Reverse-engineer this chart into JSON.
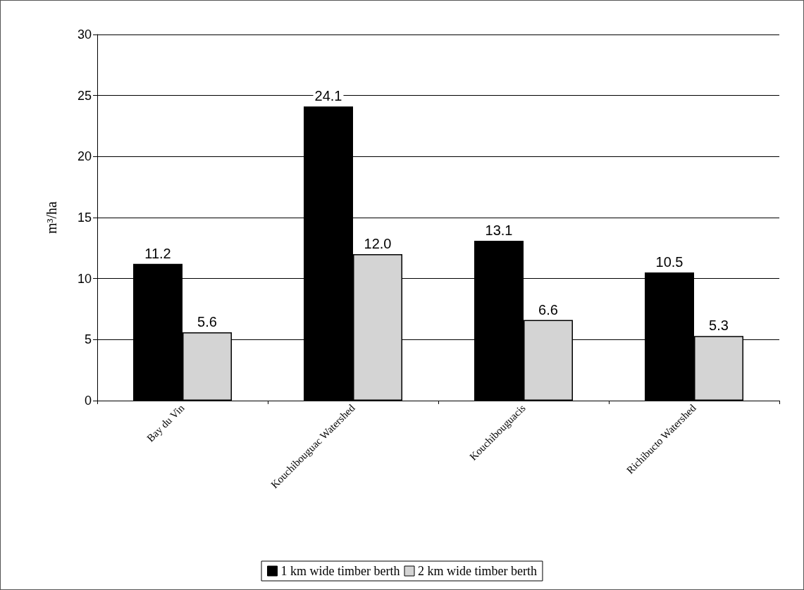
{
  "chart_data": {
    "type": "bar",
    "ylabel": "m³/ha",
    "categories": [
      "Bay du Vin",
      "Kouchibouguac Watershed",
      "Kouchibouguacis",
      "Richibucto Watershed"
    ],
    "series": [
      {
        "name": "1 km wide timber berth",
        "color": "#000000",
        "values": [
          11.2,
          24.1,
          13.1,
          10.5
        ],
        "value_labels": [
          "11.2",
          "24.1",
          "13.1",
          "10.5"
        ]
      },
      {
        "name": "2 km wide timber berth",
        "color": "#d4d4d4",
        "values": [
          5.6,
          12.0,
          6.6,
          5.3
        ],
        "value_labels": [
          "5.6",
          "12.0",
          "6.6",
          "5.3"
        ]
      }
    ],
    "ylim": [
      0,
      30
    ],
    "yticks": [
      0,
      5,
      10,
      15,
      20,
      25,
      30
    ],
    "grid": "y",
    "legend": "bottom"
  }
}
